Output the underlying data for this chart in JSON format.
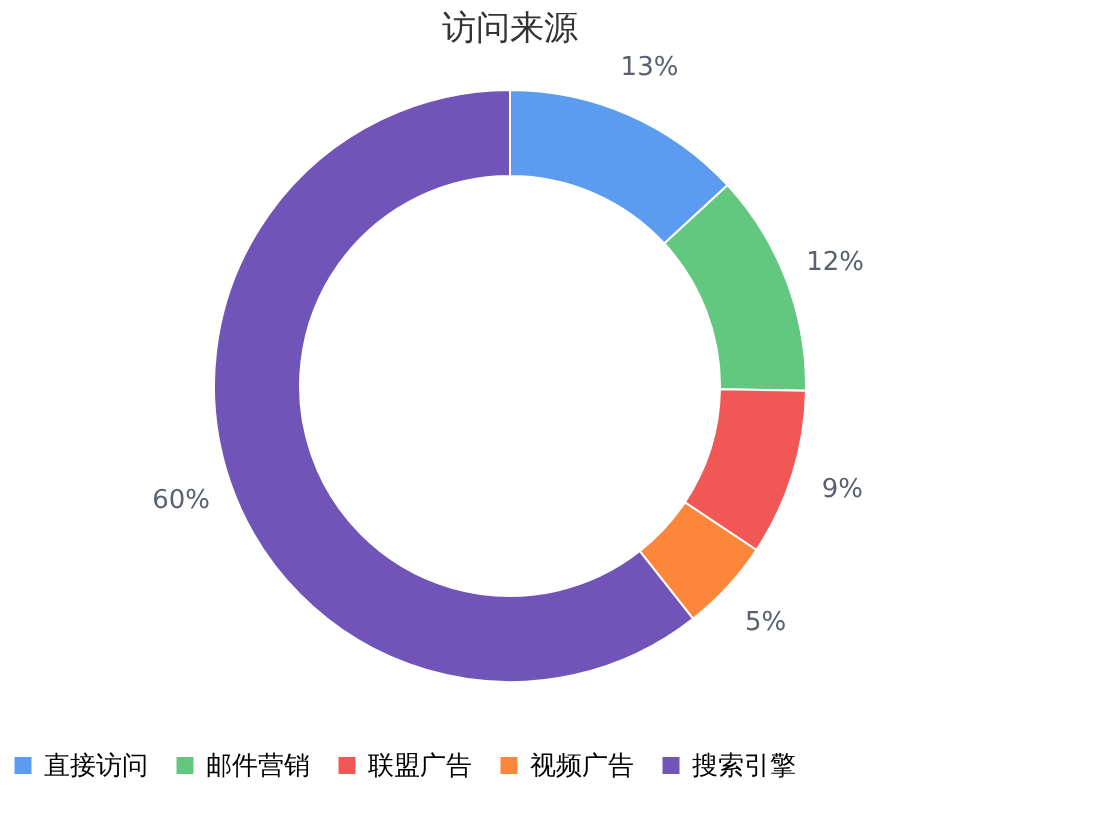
{
  "chart_data": {
    "type": "donut",
    "title": "访问来源",
    "categories": [
      "直接访问",
      "邮件营销",
      "联盟广告",
      "视频广告",
      "搜索引擎"
    ],
    "values": [
      13,
      12,
      9,
      5,
      60
    ],
    "value_labels": [
      "13%",
      "12%",
      "9%",
      "5%",
      "60%"
    ],
    "colors": [
      "#5b9cf0",
      "#62c87f",
      "#f15755",
      "#fc863a",
      "#7054b8"
    ],
    "legend": "bottom"
  }
}
